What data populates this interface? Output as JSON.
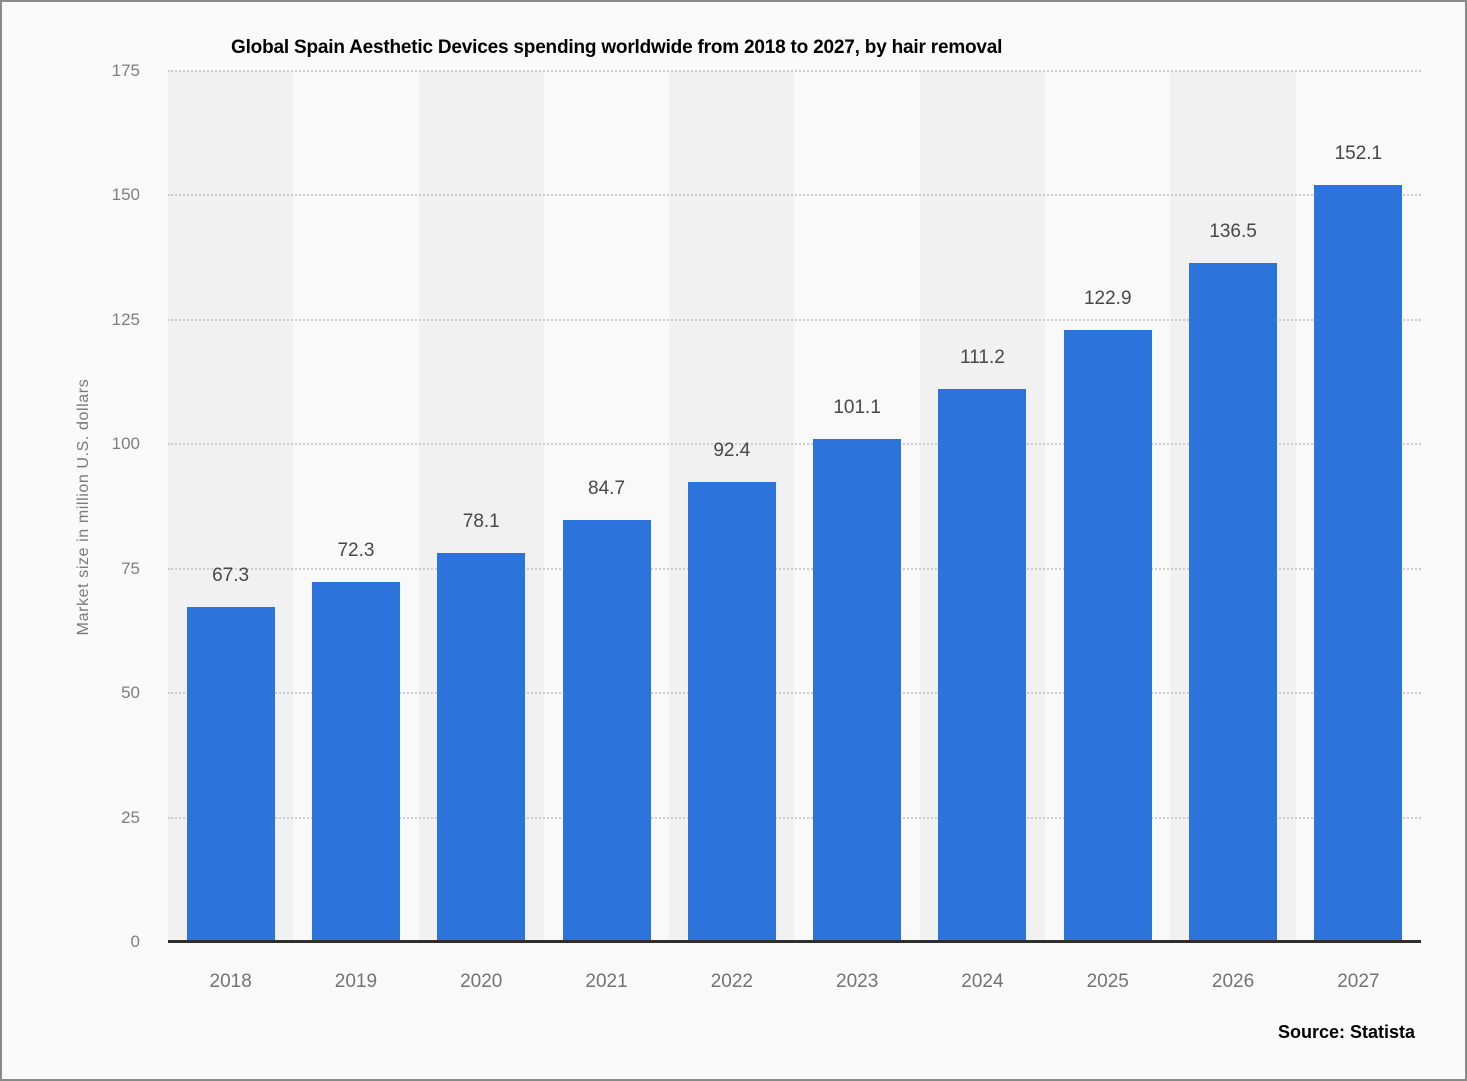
{
  "window": {
    "background_color": "#fafafa",
    "border_color": "#8a8a8a"
  },
  "chart_data": {
    "type": "bar",
    "title": "Global Spain Aesthetic Devices spending worldwide from 2018 to 2027, by hair removal",
    "categories": [
      "2018",
      "2019",
      "2020",
      "2021",
      "2022",
      "2023",
      "2024",
      "2025",
      "2026",
      "2027"
    ],
    "values": [
      67.3,
      72.3,
      78.1,
      84.7,
      92.4,
      101.1,
      111.2,
      122.9,
      136.5,
      152.1
    ],
    "xlabel": "",
    "ylabel": "Market size in million U.S. dollars",
    "ylim": [
      0,
      175
    ],
    "yticks": [
      0,
      25,
      50,
      75,
      100,
      125,
      150,
      175
    ],
    "grid": "horizontal-dotted",
    "legend": "none",
    "bar_color": "#2c73dc",
    "band_color_odd": "#f1f1f2",
    "band_color_even": "#f9f9fa",
    "gridline_color": "#cdcdcd",
    "value_label_color": "#474747",
    "axis_label_color": "#737373"
  },
  "footer": {
    "source_label": "Source: Statista"
  }
}
